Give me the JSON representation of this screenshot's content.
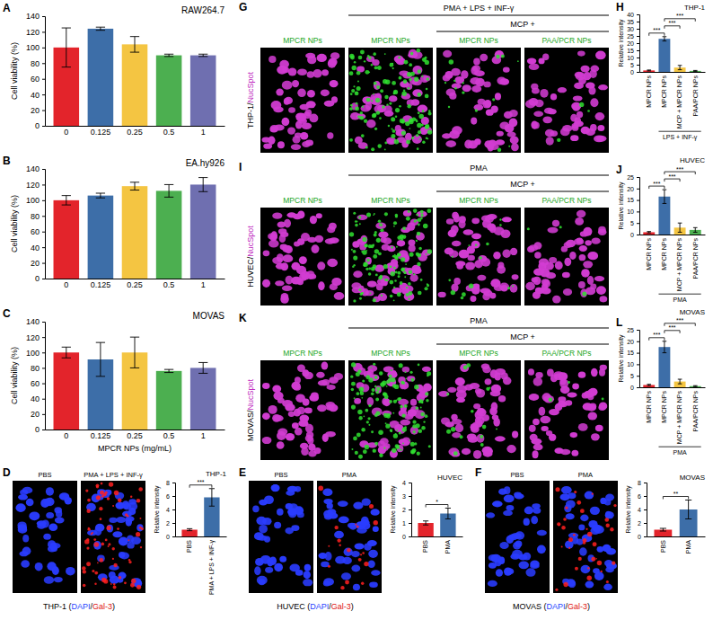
{
  "chart_data": [
    {
      "type": "bar",
      "panel": "A",
      "title": "RAW264.7",
      "y_label": "Cell viability (%)",
      "categories": [
        "0",
        "0.125",
        "0.25",
        "0.5",
        "1"
      ],
      "values": [
        100,
        124,
        104,
        90,
        90
      ],
      "errors": [
        25,
        2,
        10,
        1.5,
        1.5
      ],
      "colors": [
        "#e3242b",
        "#3d6ea8",
        "#f4c542",
        "#4caf50",
        "#6f6fb0"
      ],
      "ylim": [
        0,
        140
      ],
      "yticks": [
        0,
        20,
        40,
        60,
        80,
        100,
        120,
        140
      ]
    },
    {
      "type": "bar",
      "panel": "B",
      "title": "EA.hy926",
      "y_label": "Cell viability (%)",
      "categories": [
        "0",
        "0.125",
        "0.25",
        "0.5",
        "1"
      ],
      "values": [
        100,
        106,
        118,
        112,
        120
      ],
      "errors": [
        6,
        3,
        5,
        8,
        9
      ],
      "colors": [
        "#e3242b",
        "#3d6ea8",
        "#f4c542",
        "#4caf50",
        "#6f6fb0"
      ],
      "ylim": [
        0,
        140
      ],
      "yticks": [
        0,
        20,
        40,
        60,
        80,
        100,
        120,
        140
      ]
    },
    {
      "type": "bar",
      "panel": "C",
      "title": "MOVAS",
      "y_label": "Cell viability (%)",
      "x_label": "MPCR NPs (mg/mL)",
      "categories": [
        "0",
        "0.125",
        "0.25",
        "0.5",
        "1"
      ],
      "values": [
        100,
        91,
        100,
        76,
        80
      ],
      "errors": [
        7,
        22,
        20,
        2,
        7
      ],
      "colors": [
        "#e3242b",
        "#3d6ea8",
        "#f4c542",
        "#4caf50",
        "#6f6fb0"
      ],
      "ylim": [
        0,
        140
      ],
      "yticks": [
        0,
        20,
        40,
        60,
        80,
        100,
        120,
        140
      ]
    },
    {
      "type": "bar",
      "title": "THP-1",
      "y_label": "Relative intensity",
      "categories": [
        "PBS",
        "PMA + LPS + INF-γ"
      ],
      "values": [
        1,
        5.8
      ],
      "errors": [
        0.15,
        1.3
      ],
      "colors": [
        "#e3242b",
        "#3d6ea8"
      ],
      "ylim": [
        0,
        8
      ],
      "yticks": [
        0,
        2,
        4,
        6,
        8
      ],
      "annotations": [
        "***"
      ]
    },
    {
      "type": "bar",
      "title": "HUVEC",
      "y_label": "Relative intensity",
      "categories": [
        "PBS",
        "PMA"
      ],
      "values": [
        1,
        1.7
      ],
      "errors": [
        0.15,
        0.4
      ],
      "colors": [
        "#e3242b",
        "#3d6ea8"
      ],
      "ylim": [
        0,
        4
      ],
      "yticks": [
        0,
        1,
        2,
        3,
        4
      ],
      "annotations": [
        "*"
      ]
    },
    {
      "type": "bar",
      "title": "MOVAS",
      "y_label": "Relative intensity",
      "categories": [
        "PBS",
        "PMA"
      ],
      "values": [
        1,
        4
      ],
      "errors": [
        0.2,
        1.4
      ],
      "colors": [
        "#e3242b",
        "#3d6ea8"
      ],
      "ylim": [
        0,
        8
      ],
      "yticks": [
        0,
        2,
        4,
        6,
        8
      ],
      "annotations": [
        "**"
      ]
    },
    {
      "type": "bar",
      "panel": "H",
      "title": "THP-1",
      "y_label": "Relative intensity",
      "categories": [
        "MPCR NPs",
        "MPCR NPs",
        "MCP + MPCR NPs",
        "PAA/PCR NPs"
      ],
      "values": [
        1,
        23,
        3,
        0.7
      ],
      "errors": [
        0.3,
        1.5,
        1.5,
        0.3
      ],
      "colors": [
        "#e3242b",
        "#3d6ea8",
        "#f4c542",
        "#4caf50"
      ],
      "ylim": [
        0,
        40
      ],
      "yticks": [
        0,
        5,
        10,
        15,
        20,
        25,
        30,
        35,
        40
      ],
      "group_label": "LPS + INF-γ",
      "annotations": [
        "***",
        "***",
        "***"
      ]
    },
    {
      "type": "bar",
      "panel": "J",
      "title": "HUVEC",
      "y_label": "Relative intensity",
      "categories": [
        "MPCR NPs",
        "MPCR NPs",
        "MCP + MPCR NPs",
        "PAA/PCR NPs"
      ],
      "values": [
        1,
        16.5,
        3,
        2
      ],
      "errors": [
        0.3,
        3,
        2,
        1
      ],
      "colors": [
        "#e3242b",
        "#3d6ea8",
        "#f4c542",
        "#4caf50"
      ],
      "ylim": [
        0,
        25
      ],
      "yticks": [
        0,
        5,
        10,
        15,
        20,
        25
      ],
      "group_label": "PMA",
      "annotations": [
        "***",
        "***",
        "***"
      ]
    },
    {
      "type": "bar",
      "panel": "L",
      "title": "MOVAS",
      "y_label": "Relative intensity",
      "categories": [
        "MPCR NPs",
        "MPCR NPs",
        "MCP + MPCR NPs",
        "PAA/PCR NPs"
      ],
      "values": [
        1,
        17.5,
        2.5,
        0.5
      ],
      "errors": [
        0.3,
        2.5,
        1,
        0.2
      ],
      "colors": [
        "#e3242b",
        "#3d6ea8",
        "#f4c542",
        "#4caf50"
      ],
      "ylim": [
        0,
        25
      ],
      "yticks": [
        0,
        5,
        10,
        15,
        20,
        25
      ],
      "group_label": "PMA",
      "annotations": [
        "***",
        "***",
        "***"
      ]
    }
  ],
  "micrograph_pairs": [
    {
      "panel": "D",
      "columns": [
        "PBS",
        "PMA + LPS + INF-γ"
      ],
      "caption": [
        "THP-1 (",
        "DAPI",
        "/",
        "Gal-3",
        ")"
      ]
    },
    {
      "panel": "E",
      "columns": [
        "PBS",
        "PMA"
      ],
      "caption": [
        "HUVEC (",
        "DAPI",
        "/",
        "Gal-3",
        ")"
      ]
    },
    {
      "panel": "F",
      "columns": [
        "PBS",
        "PMA"
      ],
      "caption": [
        "MOVAS (",
        "DAPI",
        "/",
        "Gal-3",
        ")"
      ]
    }
  ],
  "micrograph_grids": [
    {
      "panel": "G",
      "row_label": [
        "THP-1",
        "/",
        "NucSpot"
      ],
      "top_label": "PMA + LPS + INF-γ",
      "sub_label": "MCP +",
      "columns": [
        "MPCR NPs",
        "MPCR NPs",
        "MPCR NPs",
        "PAA/PCR NPs"
      ]
    },
    {
      "panel": "I",
      "row_label": [
        "HUVEC",
        "/",
        "NucSpot"
      ],
      "top_label": "PMA",
      "sub_label": "MCP +",
      "columns": [
        "MPCR NPs",
        "MPCR NPs",
        "MPCR NPs",
        "PAA/PCR NPs"
      ]
    },
    {
      "panel": "K",
      "row_label": [
        "MOVAS",
        "/",
        "NucSpot"
      ],
      "top_label": "PMA",
      "sub_label": "MCP +",
      "columns": [
        "MPCR NPs",
        "MPCR NPs",
        "MPCR NPs",
        "PAA/PCR NPs"
      ]
    }
  ]
}
